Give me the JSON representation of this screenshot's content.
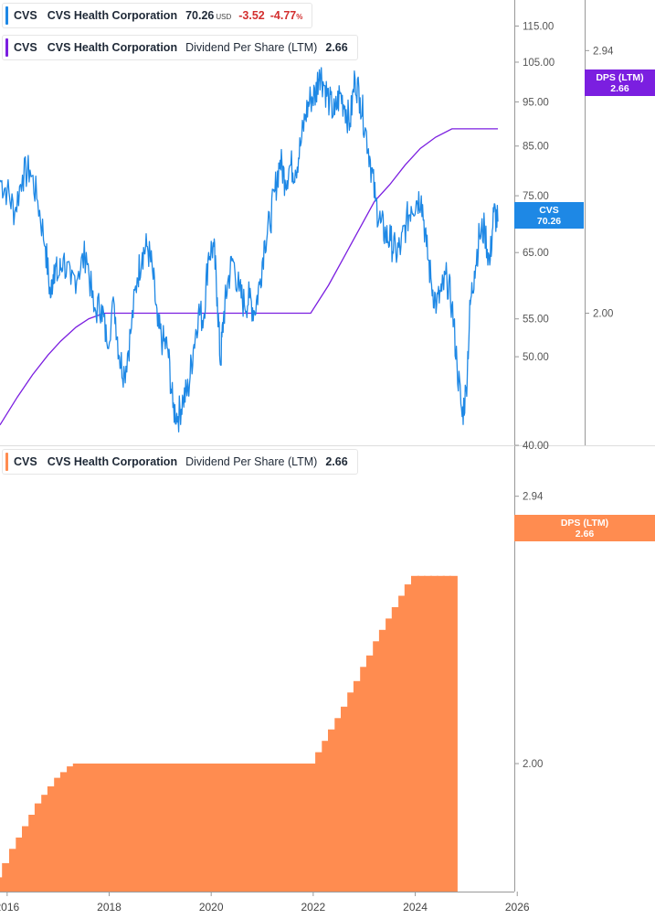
{
  "colors": {
    "price_line": "#1e88e5",
    "dps_line": "#7b1fe0",
    "dps_bar": "#ff8c50",
    "negative": "#d32f2f",
    "axis_text": "#555555",
    "axis_line": "#999999"
  },
  "legends": {
    "price": {
      "ticker": "CVS",
      "name": "CVS Health Corporation",
      "price": "70.26",
      "currency": "USD",
      "change": "-3.52",
      "change_pct": "-4.77",
      "pct_sign": "%"
    },
    "dps_top": {
      "ticker": "CVS",
      "name": "CVS Health Corporation",
      "metric": "Dividend Per Share (LTM)",
      "value": "2.66"
    },
    "dps_bottom": {
      "ticker": "CVS",
      "name": "CVS Health Corporation",
      "metric": "Dividend Per Share (LTM)",
      "value": "2.66"
    }
  },
  "tags": {
    "price": {
      "label": "CVS",
      "value": "70.26"
    },
    "dps_top": {
      "label": "DPS (LTM)",
      "value": "2.66"
    },
    "dps_bottom": {
      "label": "DPS (LTM)",
      "value": "2.66"
    }
  },
  "chart_data": [
    {
      "type": "line",
      "scale": "log",
      "x_range": [
        2015.86,
        2025.62
      ],
      "ylim": [
        40,
        120
      ],
      "price_ticks": [
        "115.00",
        "105.00",
        "95.00",
        "85.00",
        "75.00",
        "65.00",
        "55.00",
        "50.00",
        "40.00"
      ],
      "dps_ticks": [
        "2.94",
        "2.00"
      ],
      "dps_ylim": [
        1.55,
        3.0
      ],
      "series": [
        {
          "key": "price",
          "points": [
            [
              2015.86,
              78
            ],
            [
              2016.0,
              76
            ],
            [
              2016.15,
              72
            ],
            [
              2016.3,
              79
            ],
            [
              2016.45,
              80
            ],
            [
              2016.6,
              74
            ],
            [
              2016.75,
              66
            ],
            [
              2016.85,
              58
            ],
            [
              2016.92,
              63
            ],
            [
              2017.0,
              61
            ],
            [
              2017.1,
              64
            ],
            [
              2017.25,
              60
            ],
            [
              2017.4,
              62
            ],
            [
              2017.55,
              65
            ],
            [
              2017.7,
              56
            ],
            [
              2017.85,
              57
            ],
            [
              2017.95,
              52
            ],
            [
              2018.1,
              57
            ],
            [
              2018.2,
              50
            ],
            [
              2018.3,
              48
            ],
            [
              2018.42,
              53
            ],
            [
              2018.55,
              61
            ],
            [
              2018.65,
              65
            ],
            [
              2018.75,
              66
            ],
            [
              2018.85,
              62
            ],
            [
              2018.95,
              54
            ],
            [
              2019.05,
              52
            ],
            [
              2019.15,
              51
            ],
            [
              2019.25,
              44
            ],
            [
              2019.35,
              43
            ],
            [
              2019.45,
              45
            ],
            [
              2019.55,
              46
            ],
            [
              2019.65,
              51
            ],
            [
              2019.75,
              56
            ],
            [
              2019.85,
              55
            ],
            [
              2019.95,
              65
            ],
            [
              2020.05,
              66
            ],
            [
              2020.12,
              58
            ],
            [
              2020.18,
              49
            ],
            [
              2020.24,
              55
            ],
            [
              2020.32,
              60
            ],
            [
              2020.42,
              64
            ],
            [
              2020.55,
              59
            ],
            [
              2020.65,
              57
            ],
            [
              2020.75,
              58
            ],
            [
              2020.85,
              56
            ],
            [
              2020.95,
              60
            ],
            [
              2021.05,
              67
            ],
            [
              2021.15,
              70
            ],
            [
              2021.25,
              76
            ],
            [
              2021.35,
              82
            ],
            [
              2021.45,
              78
            ],
            [
              2021.55,
              81
            ],
            [
              2021.65,
              80
            ],
            [
              2021.75,
              85
            ],
            [
              2021.85,
              92
            ],
            [
              2021.95,
              96
            ],
            [
              2022.05,
              97
            ],
            [
              2022.12,
              103
            ],
            [
              2022.22,
              99
            ],
            [
              2022.32,
              95
            ],
            [
              2022.42,
              92
            ],
            [
              2022.52,
              97
            ],
            [
              2022.62,
              94
            ],
            [
              2022.72,
              90
            ],
            [
              2022.82,
              101
            ],
            [
              2022.92,
              96
            ],
            [
              2023.02,
              89
            ],
            [
              2023.12,
              82
            ],
            [
              2023.22,
              74
            ],
            [
              2023.32,
              70
            ],
            [
              2023.42,
              68
            ],
            [
              2023.52,
              67
            ],
            [
              2023.62,
              65
            ],
            [
              2023.72,
              66
            ],
            [
              2023.82,
              70
            ],
            [
              2023.92,
              73
            ],
            [
              2024.02,
              74
            ],
            [
              2024.12,
              75
            ],
            [
              2024.22,
              66
            ],
            [
              2024.32,
              60
            ],
            [
              2024.42,
              57
            ],
            [
              2024.52,
              59
            ],
            [
              2024.62,
              61
            ],
            [
              2024.72,
              57
            ],
            [
              2024.82,
              49
            ],
            [
              2024.92,
              43
            ],
            [
              2025.0,
              46
            ],
            [
              2025.08,
              57
            ],
            [
              2025.16,
              62
            ],
            [
              2025.26,
              68
            ],
            [
              2025.36,
              69
            ],
            [
              2025.46,
              63
            ],
            [
              2025.54,
              72
            ],
            [
              2025.62,
              70.26
            ]
          ]
        },
        {
          "key": "dps",
          "points": [
            [
              2015.86,
              1.6
            ],
            [
              2016.2,
              1.7
            ],
            [
              2016.5,
              1.78
            ],
            [
              2016.8,
              1.85
            ],
            [
              2017.05,
              1.9
            ],
            [
              2017.35,
              1.95
            ],
            [
              2017.6,
              1.98
            ],
            [
              2017.9,
              2.0
            ],
            [
              2021.95,
              2.0
            ],
            [
              2022.3,
              2.1
            ],
            [
              2022.6,
              2.2
            ],
            [
              2022.9,
              2.3
            ],
            [
              2023.2,
              2.4
            ],
            [
              2023.5,
              2.46
            ],
            [
              2023.8,
              2.53
            ],
            [
              2024.1,
              2.59
            ],
            [
              2024.4,
              2.63
            ],
            [
              2024.72,
              2.66
            ],
            [
              2025.62,
              2.66
            ]
          ]
        }
      ]
    },
    {
      "type": "bar",
      "x_ticks": [
        "2016",
        "2018",
        "2020",
        "2022",
        "2024",
        "2026"
      ],
      "y_ticks": [
        "2.94",
        "2.00"
      ],
      "ylim": [
        1.55,
        3.0
      ],
      "series": [
        {
          "key": "dps_bars",
          "points": [
            [
              2015.87,
              1.6
            ],
            [
              2015.98,
              1.65
            ],
            [
              2016.12,
              1.7
            ],
            [
              2016.25,
              1.74
            ],
            [
              2016.37,
              1.78
            ],
            [
              2016.5,
              1.82
            ],
            [
              2016.62,
              1.86
            ],
            [
              2016.75,
              1.89
            ],
            [
              2016.87,
              1.92
            ],
            [
              2017.0,
              1.95
            ],
            [
              2017.12,
              1.97
            ],
            [
              2017.25,
              1.99
            ],
            [
              2017.37,
              2.0
            ],
            [
              2017.5,
              2.0
            ],
            [
              2017.62,
              2.0
            ],
            [
              2017.75,
              2.0
            ],
            [
              2017.87,
              2.0
            ],
            [
              2018.0,
              2.0
            ],
            [
              2018.12,
              2.0
            ],
            [
              2018.25,
              2.0
            ],
            [
              2018.37,
              2.0
            ],
            [
              2018.5,
              2.0
            ],
            [
              2018.62,
              2.0
            ],
            [
              2018.75,
              2.0
            ],
            [
              2018.87,
              2.0
            ],
            [
              2019.0,
              2.0
            ],
            [
              2019.12,
              2.0
            ],
            [
              2019.25,
              2.0
            ],
            [
              2019.37,
              2.0
            ],
            [
              2019.5,
              2.0
            ],
            [
              2019.62,
              2.0
            ],
            [
              2019.75,
              2.0
            ],
            [
              2019.87,
              2.0
            ],
            [
              2020.0,
              2.0
            ],
            [
              2020.12,
              2.0
            ],
            [
              2020.25,
              2.0
            ],
            [
              2020.37,
              2.0
            ],
            [
              2020.5,
              2.0
            ],
            [
              2020.62,
              2.0
            ],
            [
              2020.75,
              2.0
            ],
            [
              2020.87,
              2.0
            ],
            [
              2021.0,
              2.0
            ],
            [
              2021.12,
              2.0
            ],
            [
              2021.25,
              2.0
            ],
            [
              2021.37,
              2.0
            ],
            [
              2021.5,
              2.0
            ],
            [
              2021.62,
              2.0
            ],
            [
              2021.75,
              2.0
            ],
            [
              2021.87,
              2.0
            ],
            [
              2022.0,
              2.0
            ],
            [
              2022.12,
              2.04
            ],
            [
              2022.25,
              2.08
            ],
            [
              2022.37,
              2.12
            ],
            [
              2022.5,
              2.16
            ],
            [
              2022.62,
              2.2
            ],
            [
              2022.75,
              2.25
            ],
            [
              2022.87,
              2.29
            ],
            [
              2023.0,
              2.34
            ],
            [
              2023.12,
              2.38
            ],
            [
              2023.25,
              2.43
            ],
            [
              2023.37,
              2.47
            ],
            [
              2023.5,
              2.51
            ],
            [
              2023.62,
              2.55
            ],
            [
              2023.75,
              2.59
            ],
            [
              2023.87,
              2.63
            ],
            [
              2024.0,
              2.66
            ],
            [
              2024.12,
              2.66
            ],
            [
              2024.25,
              2.66
            ],
            [
              2024.37,
              2.66
            ],
            [
              2024.5,
              2.66
            ],
            [
              2024.62,
              2.66
            ],
            [
              2024.75,
              2.66
            ]
          ]
        }
      ]
    }
  ]
}
